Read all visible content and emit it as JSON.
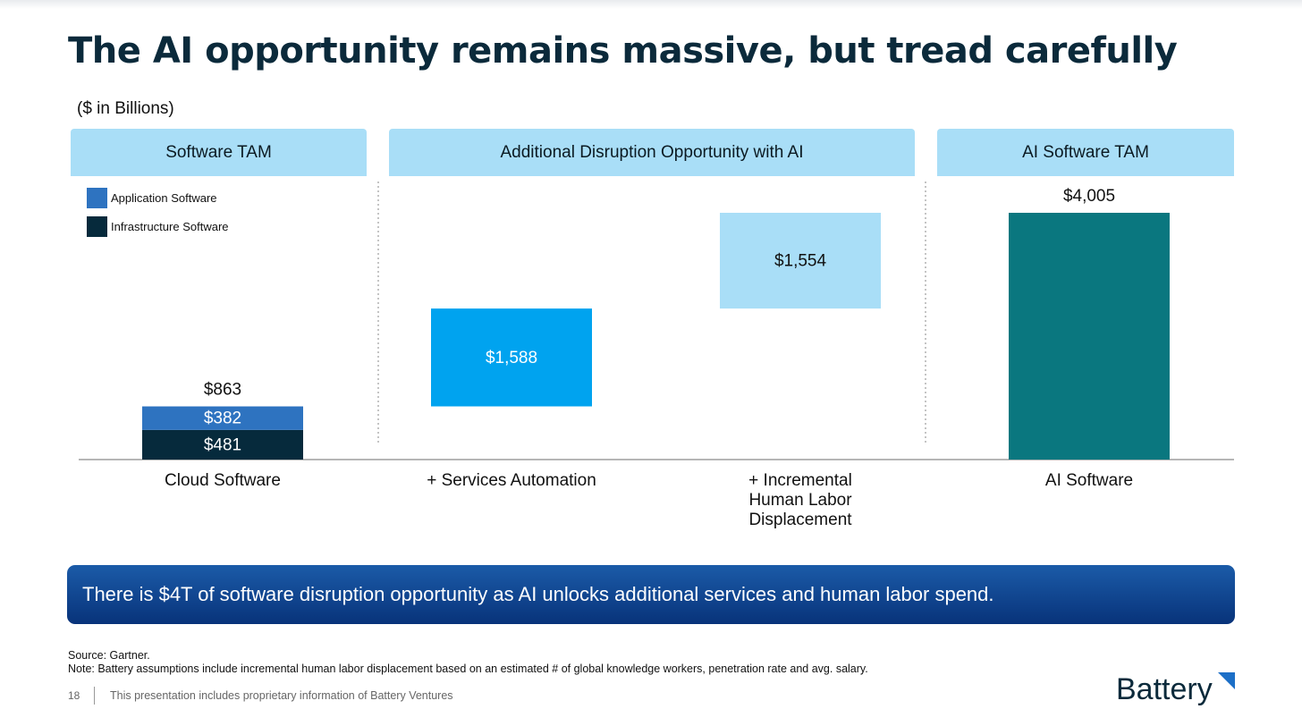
{
  "title": "The AI opportunity remains massive, but tread carefully",
  "units_label": "($ in Billions)",
  "sections": [
    {
      "label": "Software TAM"
    },
    {
      "label": "Additional Disruption Opportunity with AI"
    },
    {
      "label": "AI Software TAM"
    }
  ],
  "legend": [
    {
      "label": "Application Software",
      "color": "#2e73c0"
    },
    {
      "label": "Infrastructure Software",
      "color": "#062a3c"
    }
  ],
  "chart_data": {
    "type": "bar",
    "subtype": "waterfall",
    "categories": [
      "Cloud Software",
      "+ Services Automation",
      "+ Incremental Human Labor Displacement",
      "AI Software"
    ],
    "series": [
      {
        "name": "Infrastructure Software",
        "values": [
          481,
          null,
          null,
          null
        ],
        "labels": [
          "$481",
          null,
          null,
          null
        ],
        "color": "#062a3c"
      },
      {
        "name": "Application Software",
        "values": [
          382,
          null,
          null,
          null
        ],
        "labels": [
          "$382",
          null,
          null,
          null
        ],
        "color": "#2e73c0"
      }
    ],
    "steps": [
      {
        "category": "+ Services Automation",
        "base": 863,
        "value": 1588,
        "label": "$1,588",
        "color": "#00a3ef",
        "label_color": "#ffffff"
      },
      {
        "category": "+ Incremental Human Labor Displacement",
        "base": 2451,
        "value": 1554,
        "label": "$1,554",
        "color": "#a9def7",
        "label_color": "#111111"
      },
      {
        "category": "AI Software",
        "base": 0,
        "value": 4005,
        "label": "$4,005",
        "color": "#0a777f",
        "label_color": "#111111"
      }
    ],
    "totals": [
      {
        "category": "Cloud Software",
        "value": 863,
        "label": "$863"
      }
    ],
    "ylim": [
      0,
      4005
    ]
  },
  "callout": "There is $4T of software disruption opportunity as AI unlocks additional services and human labor spend.",
  "source": "Source: Gartner.",
  "note": "Note: Battery assumptions include incremental human labor displacement based on an estimated # of global knowledge workers, penetration rate and avg. salary.",
  "page_number": "18",
  "disclaimer": "This presentation includes proprietary information of Battery Ventures",
  "logo_text": "Battery"
}
